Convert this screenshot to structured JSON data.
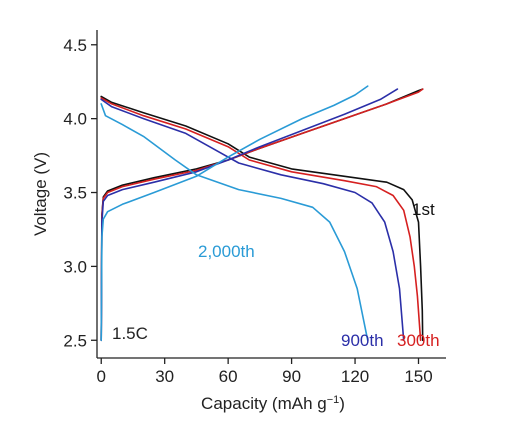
{
  "chart_data": {
    "type": "line",
    "xlabel": "Capacity (mAh g",
    "xlabel_sup": "−1",
    "xlabel_close": ")",
    "ylabel": "Voltage (V)",
    "xlim": [
      -2,
      163
    ],
    "ylim": [
      2.38,
      4.6
    ],
    "xticks": [
      0,
      30,
      60,
      90,
      120,
      150
    ],
    "yticks": [
      2.5,
      3.0,
      3.5,
      4.0,
      4.5
    ],
    "ytick_labels": [
      "2.5",
      "3.0",
      "3.5",
      "4.0",
      "4.5"
    ],
    "annotations": {
      "rate": "1.5C",
      "cycle_1": "1st",
      "cycle_300": "300th",
      "cycle_900": "900th",
      "cycle_2000": "2,000th"
    },
    "series": [
      {
        "color": "#111111",
        "charge": [
          [
            0,
            2.5
          ],
          [
            0.3,
            3.35
          ],
          [
            1,
            3.47
          ],
          [
            3,
            3.51
          ],
          [
            10,
            3.55
          ],
          [
            25,
            3.6
          ],
          [
            45,
            3.66
          ],
          [
            60,
            3.72
          ],
          [
            75,
            3.8
          ],
          [
            95,
            3.9
          ],
          [
            115,
            4.0
          ],
          [
            135,
            4.1
          ],
          [
            150,
            4.19
          ],
          [
            152,
            4.2
          ]
        ],
        "discharge": [
          [
            0,
            4.15
          ],
          [
            5,
            4.11
          ],
          [
            20,
            4.04
          ],
          [
            40,
            3.95
          ],
          [
            60,
            3.83
          ],
          [
            70,
            3.74
          ],
          [
            90,
            3.66
          ],
          [
            115,
            3.61
          ],
          [
            135,
            3.57
          ],
          [
            143,
            3.52
          ],
          [
            147,
            3.45
          ],
          [
            150,
            3.3
          ],
          [
            151,
            3.0
          ],
          [
            151.8,
            2.7
          ],
          [
            152,
            2.5
          ]
        ]
      },
      {
        "color": "#d62020",
        "charge": [
          [
            0,
            2.5
          ],
          [
            0.3,
            3.34
          ],
          [
            1,
            3.46
          ],
          [
            3,
            3.5
          ],
          [
            10,
            3.54
          ],
          [
            25,
            3.59
          ],
          [
            45,
            3.65
          ],
          [
            60,
            3.72
          ],
          [
            75,
            3.8
          ],
          [
            95,
            3.9
          ],
          [
            115,
            4.0
          ],
          [
            135,
            4.1
          ],
          [
            150,
            4.18
          ],
          [
            152,
            4.2
          ]
        ],
        "discharge": [
          [
            0,
            4.14
          ],
          [
            5,
            4.1
          ],
          [
            20,
            4.02
          ],
          [
            40,
            3.93
          ],
          [
            60,
            3.81
          ],
          [
            70,
            3.72
          ],
          [
            90,
            3.64
          ],
          [
            115,
            3.58
          ],
          [
            130,
            3.54
          ],
          [
            138,
            3.48
          ],
          [
            143,
            3.38
          ],
          [
            146,
            3.2
          ],
          [
            148,
            3.0
          ],
          [
            149.5,
            2.8
          ],
          [
            151,
            2.5
          ]
        ]
      },
      {
        "color": "#2b2fa8",
        "charge": [
          [
            0,
            2.5
          ],
          [
            0.3,
            3.3
          ],
          [
            1,
            3.44
          ],
          [
            3,
            3.48
          ],
          [
            10,
            3.52
          ],
          [
            25,
            3.57
          ],
          [
            45,
            3.64
          ],
          [
            60,
            3.72
          ],
          [
            75,
            3.81
          ],
          [
            95,
            3.92
          ],
          [
            115,
            4.03
          ],
          [
            132,
            4.13
          ],
          [
            140,
            4.2
          ]
        ],
        "discharge": [
          [
            0,
            4.13
          ],
          [
            5,
            4.08
          ],
          [
            20,
            4.0
          ],
          [
            40,
            3.9
          ],
          [
            55,
            3.78
          ],
          [
            65,
            3.7
          ],
          [
            85,
            3.62
          ],
          [
            105,
            3.56
          ],
          [
            120,
            3.5
          ],
          [
            128,
            3.43
          ],
          [
            134,
            3.3
          ],
          [
            138,
            3.1
          ],
          [
            141,
            2.85
          ],
          [
            143,
            2.5
          ]
        ]
      },
      {
        "color": "#2a9bd6",
        "charge": [
          [
            0,
            2.5
          ],
          [
            0.3,
            3.2
          ],
          [
            1,
            3.32
          ],
          [
            3,
            3.37
          ],
          [
            10,
            3.42
          ],
          [
            25,
            3.5
          ],
          [
            45,
            3.61
          ],
          [
            60,
            3.74
          ],
          [
            75,
            3.86
          ],
          [
            95,
            4.0
          ],
          [
            110,
            4.09
          ],
          [
            120,
            4.16
          ],
          [
            126,
            4.22
          ]
        ],
        "discharge": [
          [
            0,
            4.1
          ],
          [
            2,
            4.02
          ],
          [
            10,
            3.96
          ],
          [
            20,
            3.88
          ],
          [
            35,
            3.72
          ],
          [
            45,
            3.62
          ],
          [
            65,
            3.52
          ],
          [
            85,
            3.46
          ],
          [
            100,
            3.4
          ],
          [
            108,
            3.3
          ],
          [
            115,
            3.1
          ],
          [
            121,
            2.85
          ],
          [
            126,
            2.5
          ]
        ]
      }
    ]
  }
}
